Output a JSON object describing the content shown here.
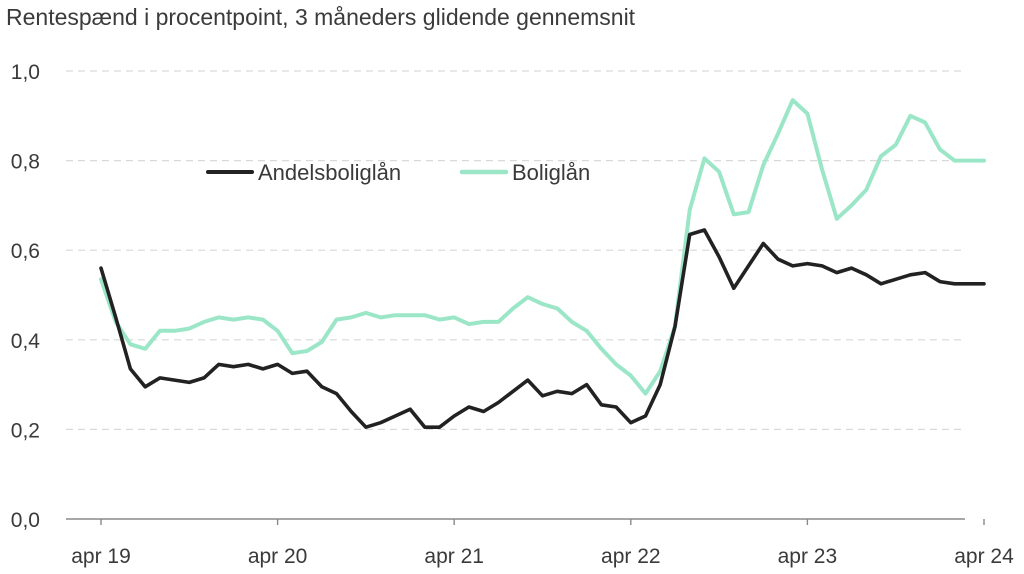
{
  "chart_data": {
    "type": "line",
    "title": "Rentespænd i procentpoint, 3 måneders glidende gennemsnit",
    "xlabel": "",
    "ylabel": "",
    "ylim": [
      0,
      1.0
    ],
    "y_ticks": [
      {
        "value": 0.0,
        "label": "0,0"
      },
      {
        "value": 0.2,
        "label": "0,2"
      },
      {
        "value": 0.4,
        "label": "0,4"
      },
      {
        "value": 0.6,
        "label": "0,6"
      },
      {
        "value": 0.8,
        "label": "0,8"
      },
      {
        "value": 1.0,
        "label": "1,0"
      }
    ],
    "x_ticks": [
      "apr 19",
      "apr 20",
      "apr 21",
      "apr 22",
      "apr 23",
      "apr 24"
    ],
    "grid": "horizontal dashed",
    "legend_position": "top-left",
    "x": [
      "2019-04",
      "2019-05",
      "2019-06",
      "2019-07",
      "2019-08",
      "2019-09",
      "2019-10",
      "2019-11",
      "2019-12",
      "2020-01",
      "2020-02",
      "2020-03",
      "2020-04",
      "2020-05",
      "2020-06",
      "2020-07",
      "2020-08",
      "2020-09",
      "2020-10",
      "2020-11",
      "2020-12",
      "2021-01",
      "2021-02",
      "2021-03",
      "2021-04",
      "2021-05",
      "2021-06",
      "2021-07",
      "2021-08",
      "2021-09",
      "2021-10",
      "2021-11",
      "2021-12",
      "2022-01",
      "2022-02",
      "2022-03",
      "2022-04",
      "2022-05",
      "2022-06",
      "2022-07",
      "2022-08",
      "2022-09",
      "2022-10",
      "2022-11",
      "2022-12",
      "2023-01",
      "2023-02",
      "2023-03",
      "2023-04",
      "2023-05",
      "2023-06",
      "2023-07",
      "2023-08",
      "2023-09",
      "2023-10",
      "2023-11",
      "2023-12",
      "2024-01",
      "2024-02",
      "2024-03",
      "2024-04"
    ],
    "series": [
      {
        "name": "Andelsboliglån",
        "color": "#222222",
        "values": [
          0.56,
          0.45,
          0.335,
          0.295,
          0.315,
          0.31,
          0.305,
          0.315,
          0.345,
          0.34,
          0.345,
          0.335,
          0.345,
          0.325,
          0.33,
          0.295,
          0.28,
          0.24,
          0.205,
          0.215,
          0.23,
          0.245,
          0.205,
          0.205,
          0.23,
          0.25,
          0.24,
          0.26,
          0.285,
          0.31,
          0.275,
          0.285,
          0.28,
          0.3,
          0.255,
          0.25,
          0.215,
          0.23,
          0.3,
          0.43,
          0.635,
          0.645,
          0.585,
          0.515,
          0.565,
          0.615,
          0.58,
          0.565,
          0.57,
          0.565,
          0.55,
          0.56,
          0.545,
          0.525,
          0.535,
          0.545,
          0.55,
          0.53,
          0.525,
          0.525,
          0.525
        ]
      },
      {
        "name": "Boliglån",
        "color": "#9ce6c8",
        "values": [
          0.535,
          0.44,
          0.39,
          0.38,
          0.42,
          0.42,
          0.425,
          0.44,
          0.45,
          0.445,
          0.45,
          0.445,
          0.42,
          0.37,
          0.375,
          0.395,
          0.445,
          0.45,
          0.46,
          0.45,
          0.455,
          0.455,
          0.455,
          0.445,
          0.45,
          0.435,
          0.44,
          0.44,
          0.47,
          0.495,
          0.48,
          0.47,
          0.44,
          0.42,
          0.38,
          0.345,
          0.32,
          0.28,
          0.33,
          0.43,
          0.69,
          0.805,
          0.775,
          0.68,
          0.685,
          0.79,
          0.86,
          0.935,
          0.905,
          0.78,
          0.67,
          0.7,
          0.735,
          0.81,
          0.835,
          0.9,
          0.885,
          0.825,
          0.8,
          0.8,
          0.8
        ]
      }
    ]
  }
}
